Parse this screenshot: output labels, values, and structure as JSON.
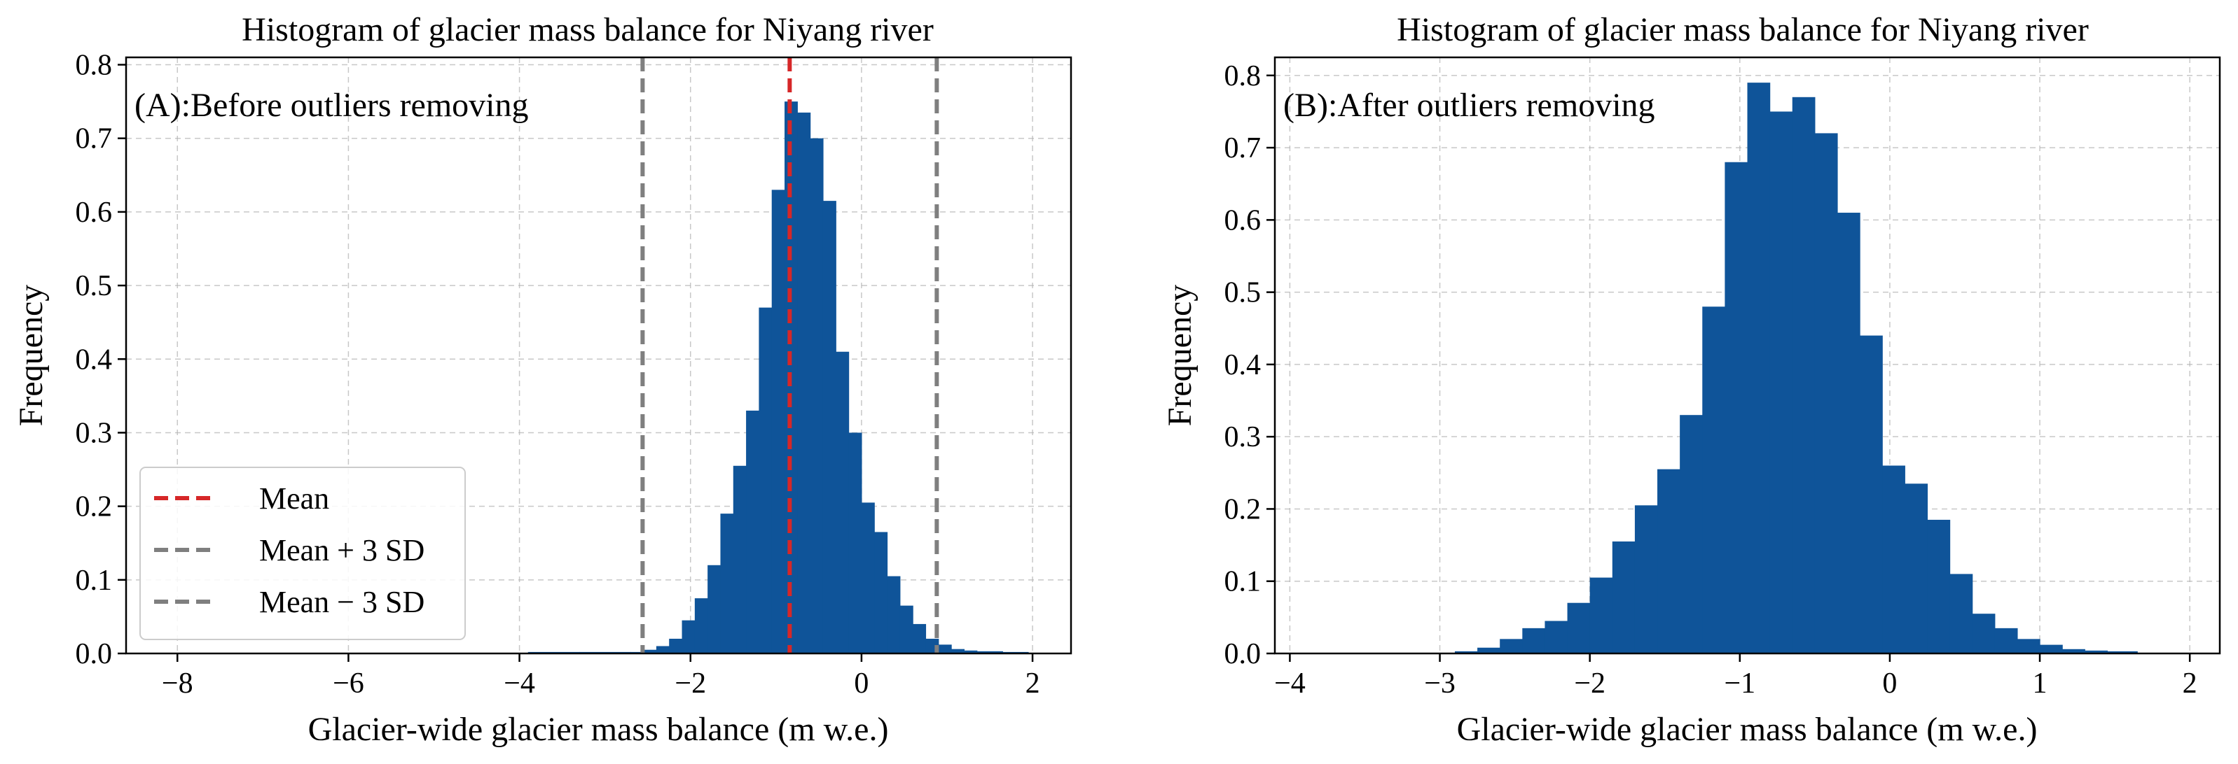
{
  "chart_data": [
    {
      "type": "histogram",
      "panel_label": "(A):Before outliers removing",
      "title": "Histogram of glacier mass balance for Niyang river",
      "xlabel": "Glacier-wide glacier mass balance (m w.e.)",
      "ylabel": "Frequency",
      "xlim": [
        -8.6,
        2.45
      ],
      "ylim": [
        0,
        0.81
      ],
      "xticks": [
        -8,
        -6,
        -4,
        -2,
        0,
        2
      ],
      "xtick_labels": [
        "−8",
        "−6",
        "−4",
        "−2",
        "0",
        "2"
      ],
      "yticks": [
        0,
        0.1,
        0.2,
        0.3,
        0.4,
        0.5,
        0.6,
        0.7,
        0.8
      ],
      "ytick_labels": [
        "0.0",
        "0.1",
        "0.2",
        "0.3",
        "0.4",
        "0.5",
        "0.6",
        "0.7",
        "0.8"
      ],
      "grid": true,
      "bar_color": "#0f5499",
      "bins": [
        {
          "x0": -3.9,
          "x1": -3.3,
          "value": 0.002
        },
        {
          "x0": -3.3,
          "x1": -2.7,
          "value": 0.002
        },
        {
          "x0": -2.7,
          "x1": -2.55,
          "value": 0.002
        },
        {
          "x0": -2.55,
          "x1": -2.4,
          "value": 0.005
        },
        {
          "x0": -2.4,
          "x1": -2.25,
          "value": 0.01
        },
        {
          "x0": -2.25,
          "x1": -2.1,
          "value": 0.02
        },
        {
          "x0": -2.1,
          "x1": -1.95,
          "value": 0.045
        },
        {
          "x0": -1.95,
          "x1": -1.8,
          "value": 0.075
        },
        {
          "x0": -1.8,
          "x1": -1.65,
          "value": 0.12
        },
        {
          "x0": -1.65,
          "x1": -1.5,
          "value": 0.19
        },
        {
          "x0": -1.5,
          "x1": -1.35,
          "value": 0.255
        },
        {
          "x0": -1.35,
          "x1": -1.2,
          "value": 0.33
        },
        {
          "x0": -1.2,
          "x1": -1.05,
          "value": 0.47
        },
        {
          "x0": -1.05,
          "x1": -0.9,
          "value": 0.63
        },
        {
          "x0": -0.9,
          "x1": -0.75,
          "value": 0.75
        },
        {
          "x0": -0.75,
          "x1": -0.6,
          "value": 0.735
        },
        {
          "x0": -0.6,
          "x1": -0.45,
          "value": 0.7
        },
        {
          "x0": -0.45,
          "x1": -0.3,
          "value": 0.615
        },
        {
          "x0": -0.3,
          "x1": -0.15,
          "value": 0.41
        },
        {
          "x0": -0.15,
          "x1": 0.0,
          "value": 0.3
        },
        {
          "x0": 0.0,
          "x1": 0.15,
          "value": 0.205
        },
        {
          "x0": 0.15,
          "x1": 0.3,
          "value": 0.165
        },
        {
          "x0": 0.3,
          "x1": 0.45,
          "value": 0.105
        },
        {
          "x0": 0.45,
          "x1": 0.6,
          "value": 0.065
        },
        {
          "x0": 0.6,
          "x1": 0.75,
          "value": 0.04
        },
        {
          "x0": 0.75,
          "x1": 0.9,
          "value": 0.02
        },
        {
          "x0": 0.9,
          "x1": 1.05,
          "value": 0.012
        },
        {
          "x0": 1.05,
          "x1": 1.2,
          "value": 0.006
        },
        {
          "x0": 1.2,
          "x1": 1.35,
          "value": 0.004
        },
        {
          "x0": 1.35,
          "x1": 1.65,
          "value": 0.003
        },
        {
          "x0": 1.65,
          "x1": 1.95,
          "value": 0.002
        }
      ],
      "vlines": [
        {
          "name": "mean-line",
          "x": -0.84,
          "color": "#d62728",
          "label": "Mean"
        },
        {
          "name": "mean-plus-3sd-line",
          "x": 0.88,
          "color": "#7f7f7f",
          "label": "Mean + 3 SD"
        },
        {
          "name": "mean-minus-3sd-line",
          "x": -2.56,
          "color": "#7f7f7f",
          "label": "Mean − 3 SD"
        }
      ],
      "legend": {
        "position": "lower-left",
        "entries": [
          {
            "label": "Mean",
            "color": "#d62728"
          },
          {
            "label": "Mean + 3 SD",
            "color": "#7f7f7f"
          },
          {
            "label": "Mean − 3 SD",
            "color": "#7f7f7f"
          }
        ]
      }
    },
    {
      "type": "histogram",
      "panel_label": "(B):After outliers removing",
      "title": "Histogram of glacier mass balance for Niyang river",
      "xlabel": "Glacier-wide glacier mass balance (m w.e.)",
      "ylabel": "Frequency",
      "xlim": [
        -4.1,
        2.2
      ],
      "ylim": [
        0,
        0.825
      ],
      "xticks": [
        -4,
        -3,
        -2,
        -1,
        0,
        1,
        2
      ],
      "xtick_labels": [
        "−4",
        "−3",
        "−2",
        "−1",
        "0",
        "1",
        "2"
      ],
      "yticks": [
        0,
        0.1,
        0.2,
        0.3,
        0.4,
        0.5,
        0.6,
        0.7,
        0.8
      ],
      "ytick_labels": [
        "0.0",
        "0.1",
        "0.2",
        "0.3",
        "0.4",
        "0.5",
        "0.6",
        "0.7",
        "0.8"
      ],
      "grid": true,
      "bar_color": "#0f5499",
      "bins": [
        {
          "x0": -2.9,
          "x1": -2.75,
          "value": 0.003
        },
        {
          "x0": -2.75,
          "x1": -2.6,
          "value": 0.008
        },
        {
          "x0": -2.6,
          "x1": -2.45,
          "value": 0.02
        },
        {
          "x0": -2.45,
          "x1": -2.3,
          "value": 0.035
        },
        {
          "x0": -2.3,
          "x1": -2.15,
          "value": 0.045
        },
        {
          "x0": -2.15,
          "x1": -2.0,
          "value": 0.07
        },
        {
          "x0": -2.0,
          "x1": -1.85,
          "value": 0.105
        },
        {
          "x0": -1.85,
          "x1": -1.7,
          "value": 0.155
        },
        {
          "x0": -1.7,
          "x1": -1.55,
          "value": 0.205
        },
        {
          "x0": -1.55,
          "x1": -1.4,
          "value": 0.255
        },
        {
          "x0": -1.4,
          "x1": -1.25,
          "value": 0.33
        },
        {
          "x0": -1.25,
          "x1": -1.1,
          "value": 0.48
        },
        {
          "x0": -1.1,
          "x1": -0.95,
          "value": 0.68
        },
        {
          "x0": -0.95,
          "x1": -0.8,
          "value": 0.79
        },
        {
          "x0": -0.8,
          "x1": -0.65,
          "value": 0.75
        },
        {
          "x0": -0.65,
          "x1": -0.5,
          "value": 0.77
        },
        {
          "x0": -0.5,
          "x1": -0.35,
          "value": 0.72
        },
        {
          "x0": -0.35,
          "x1": -0.2,
          "value": 0.61
        },
        {
          "x0": -0.2,
          "x1": -0.05,
          "value": 0.44
        },
        {
          "x0": -0.05,
          "x1": 0.1,
          "value": 0.26
        },
        {
          "x0": 0.1,
          "x1": 0.25,
          "value": 0.235
        },
        {
          "x0": 0.25,
          "x1": 0.4,
          "value": 0.185
        },
        {
          "x0": 0.4,
          "x1": 0.55,
          "value": 0.11
        },
        {
          "x0": 0.55,
          "x1": 0.7,
          "value": 0.055
        },
        {
          "x0": 0.7,
          "x1": 0.85,
          "value": 0.035
        },
        {
          "x0": 0.85,
          "x1": 1.0,
          "value": 0.02
        },
        {
          "x0": 1.0,
          "x1": 1.15,
          "value": 0.012
        },
        {
          "x0": 1.15,
          "x1": 1.3,
          "value": 0.006
        },
        {
          "x0": 1.3,
          "x1": 1.45,
          "value": 0.004
        },
        {
          "x0": 1.45,
          "x1": 1.65,
          "value": 0.003
        }
      ]
    }
  ]
}
